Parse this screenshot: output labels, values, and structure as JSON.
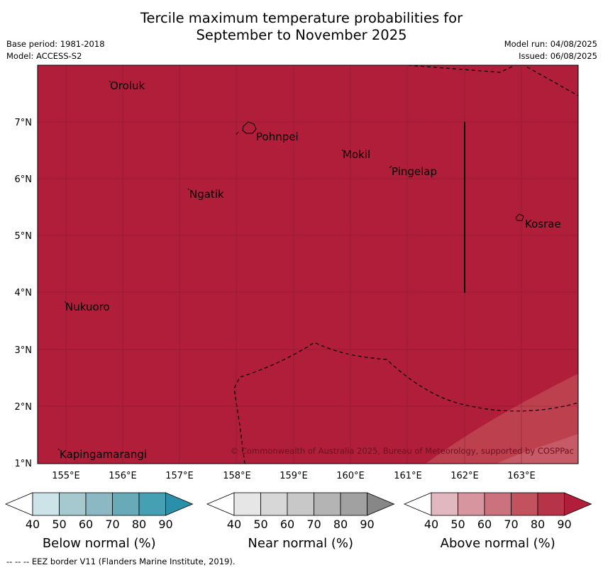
{
  "title": {
    "line1": "Tercile maximum temperature probabilities for",
    "line2": "September to November 2025"
  },
  "info": {
    "base_period": "Base period: 1981-2018",
    "model": "Model: ACCESS-S2",
    "model_run": "Model run: 04/08/2025",
    "issued": "Issued: 06/08/2025"
  },
  "map": {
    "lon_labels": [
      "155°E",
      "156°E",
      "157°E",
      "158°E",
      "159°E",
      "160°E",
      "161°E",
      "162°E",
      "163°E"
    ],
    "lat_labels": [
      "1°N",
      "2°N",
      "3°N",
      "4°N",
      "5°N",
      "6°N",
      "7°N"
    ],
    "places": [
      "Oroluk",
      "Pohnpei",
      "Mokil",
      "Pingelap",
      "Ngatik",
      "Kosrae",
      "Nukuoro",
      "Kapingamarangi"
    ],
    "copyright": "© Commonwealth of Australia 2025, Bureau of Meteorology, supported by COSPPac",
    "fill_color": "#b01e3a",
    "fill_category": "Above normal 80-90%"
  },
  "legends": [
    {
      "label": "Below normal (%)",
      "ticks": [
        "40",
        "50",
        "60",
        "70",
        "80",
        "90"
      ],
      "colors": [
        "#cce3e8",
        "#a5c9cf",
        "#8bb8c2",
        "#69aab9",
        "#45a0b3",
        "#2a8fa8"
      ]
    },
    {
      "label": "Near normal (%)",
      "ticks": [
        "40",
        "50",
        "60",
        "70",
        "80",
        "90"
      ],
      "colors": [
        "#e6e6e6",
        "#d7d7d7",
        "#c8c8c8",
        "#b4b4b4",
        "#a1a1a1",
        "#878787"
      ]
    },
    {
      "label": "Above normal (%)",
      "ticks": [
        "40",
        "50",
        "60",
        "70",
        "80",
        "90"
      ],
      "colors": [
        "#e1b8c0",
        "#d7959f",
        "#cc717e",
        "#c3525f",
        "#b73347",
        "#b01e3a"
      ]
    }
  ],
  "footer": "--  --  -- EEZ border V11 (Flanders Marine Institute, 2019)."
}
